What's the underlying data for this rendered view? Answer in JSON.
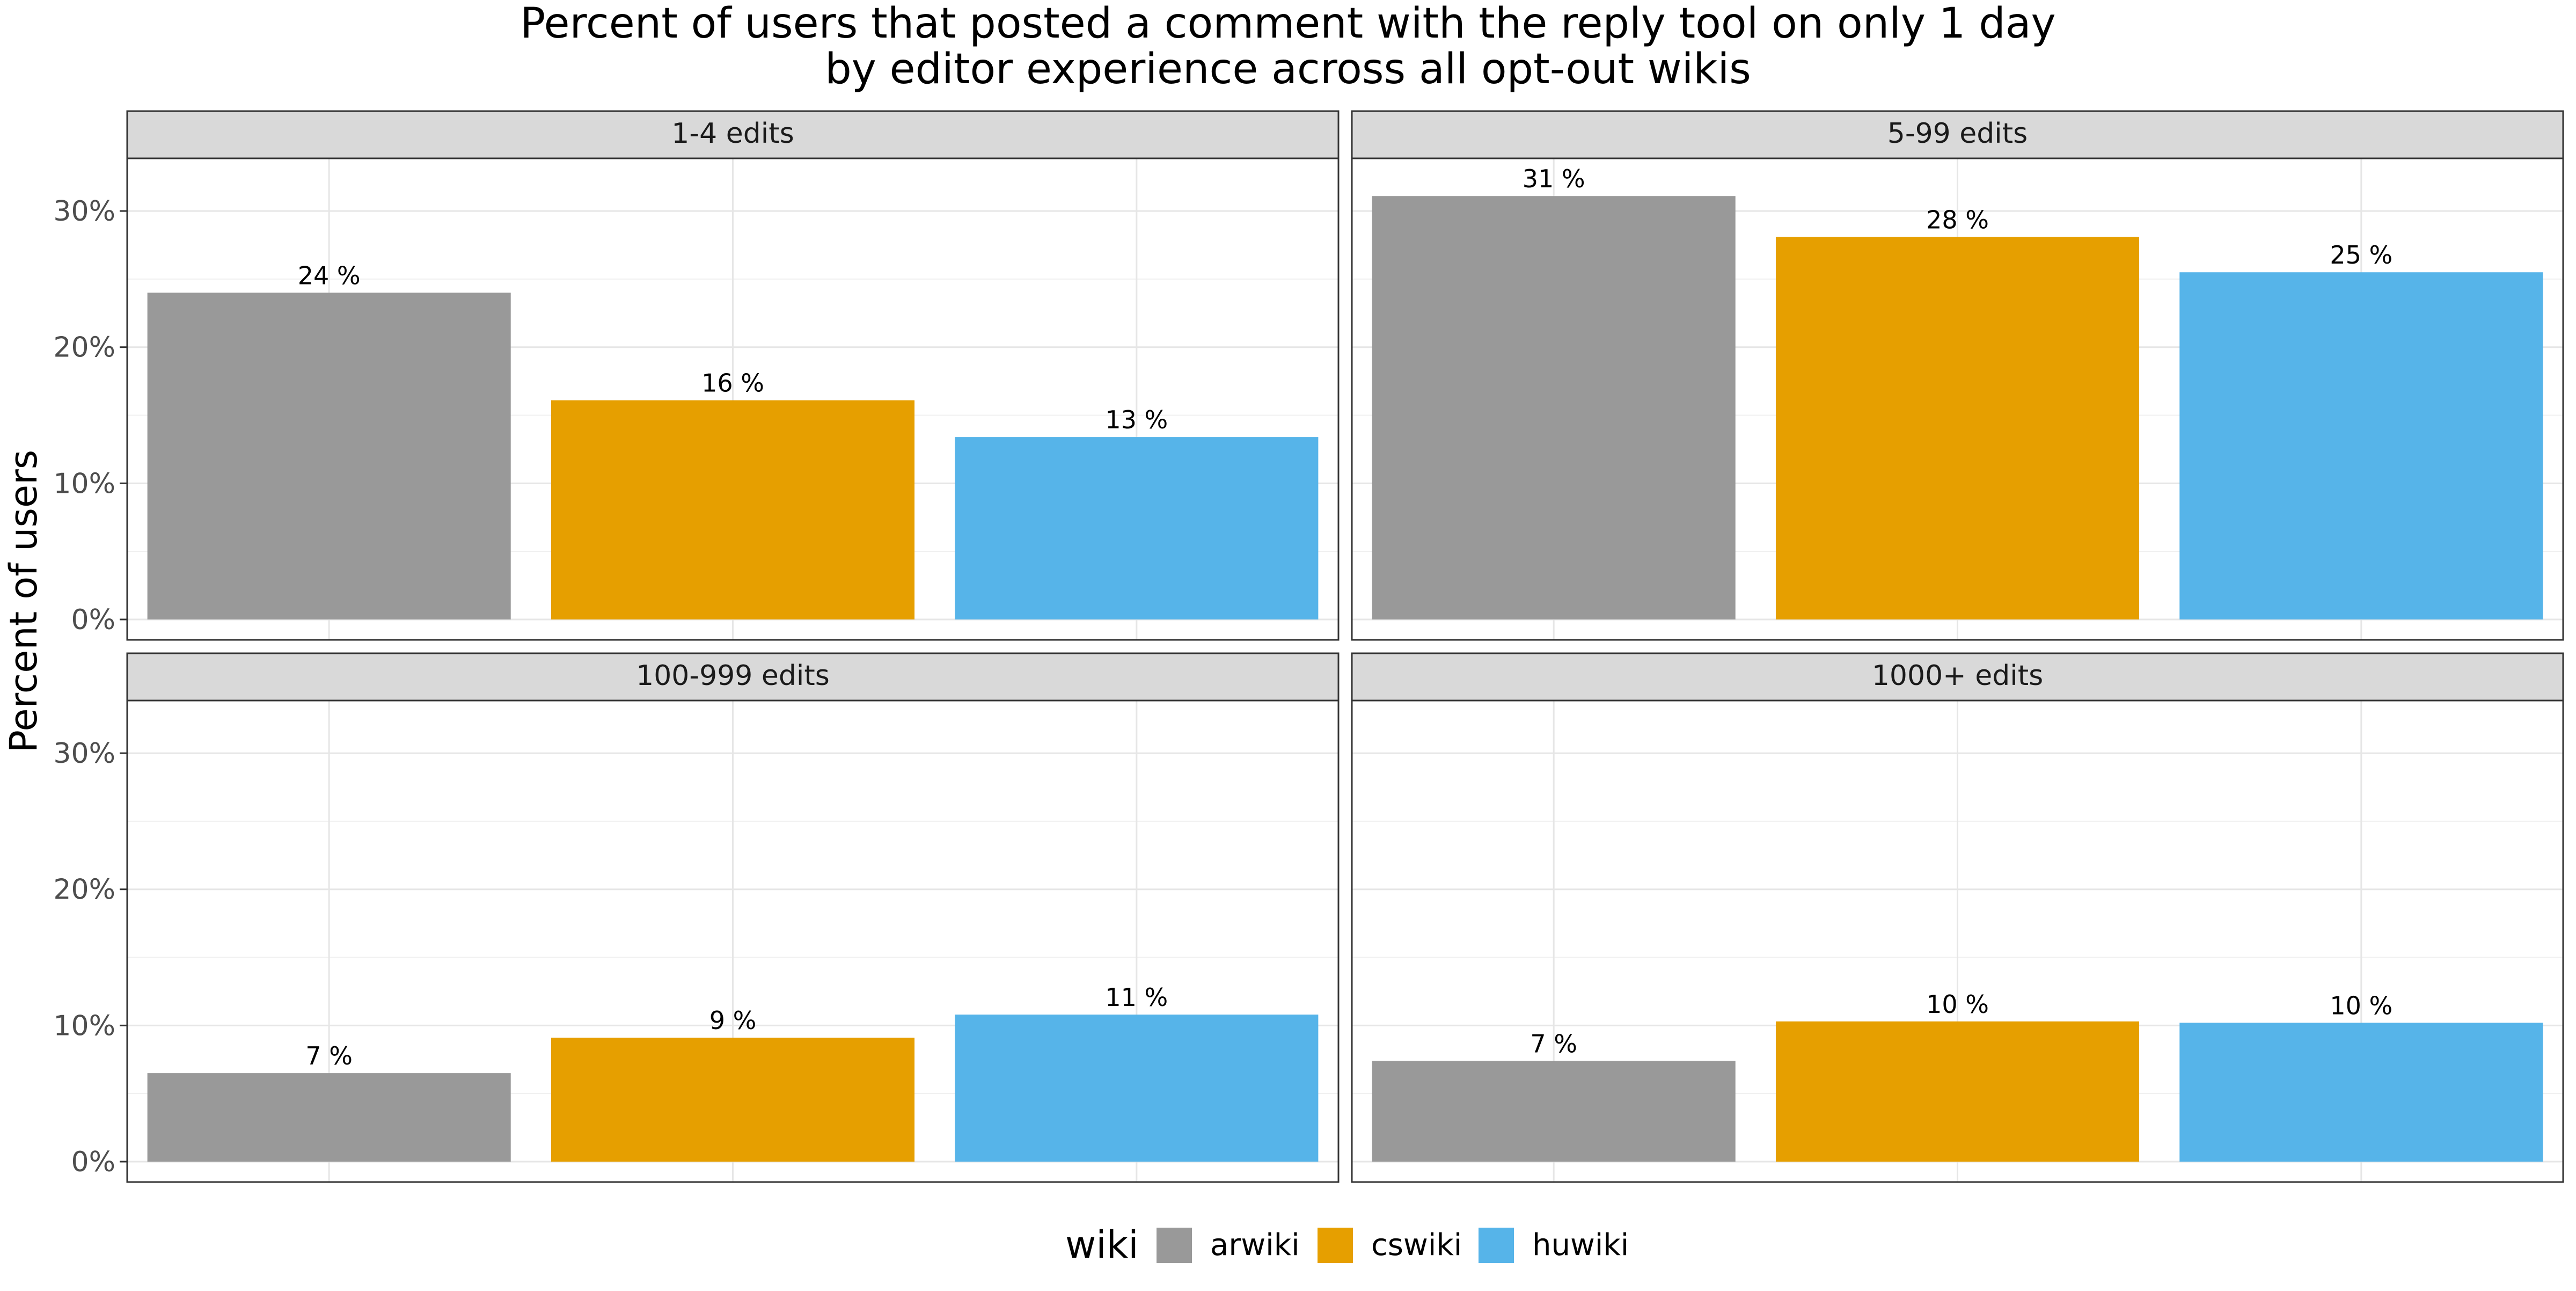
{
  "chart_data": {
    "type": "bar",
    "title": "Percent of users that posted a comment with the reply tool on only 1 day",
    "subtitle": "by editor experience across all opt-out wikis",
    "ylabel": "Percent of users",
    "xlabel": "",
    "ylim": [
      0,
      33
    ],
    "yticks": [
      0,
      10,
      20,
      30
    ],
    "ytick_labels": [
      "0%",
      "10%",
      "20%",
      "30%"
    ],
    "grid": true,
    "legend_position": "bottom",
    "legend": {
      "title": "wiki",
      "entries": [
        "arwiki",
        "cswiki",
        "huwiki"
      ]
    },
    "categories": [
      "arwiki",
      "cswiki",
      "huwiki"
    ],
    "colors": {
      "arwiki": "#999999",
      "cswiki": "#E69F00",
      "huwiki": "#56B4E9"
    },
    "facets": [
      {
        "label": "1-4 edits",
        "values": [
          24.0,
          16.1,
          13.4
        ],
        "value_labels": [
          "24 %",
          "16 %",
          "13 %"
        ]
      },
      {
        "label": "5-99 edits",
        "values": [
          31.1,
          28.1,
          25.5
        ],
        "value_labels": [
          "31 %",
          "28 %",
          "25 %"
        ]
      },
      {
        "label": "100-999 edits",
        "values": [
          6.5,
          9.1,
          10.8
        ],
        "value_labels": [
          "7 %",
          "9 %",
          "11 %"
        ]
      },
      {
        "label": "1000+ edits",
        "values": [
          7.4,
          10.3,
          10.2
        ],
        "value_labels": [
          "7 %",
          "10 %",
          "10 %"
        ]
      }
    ]
  }
}
